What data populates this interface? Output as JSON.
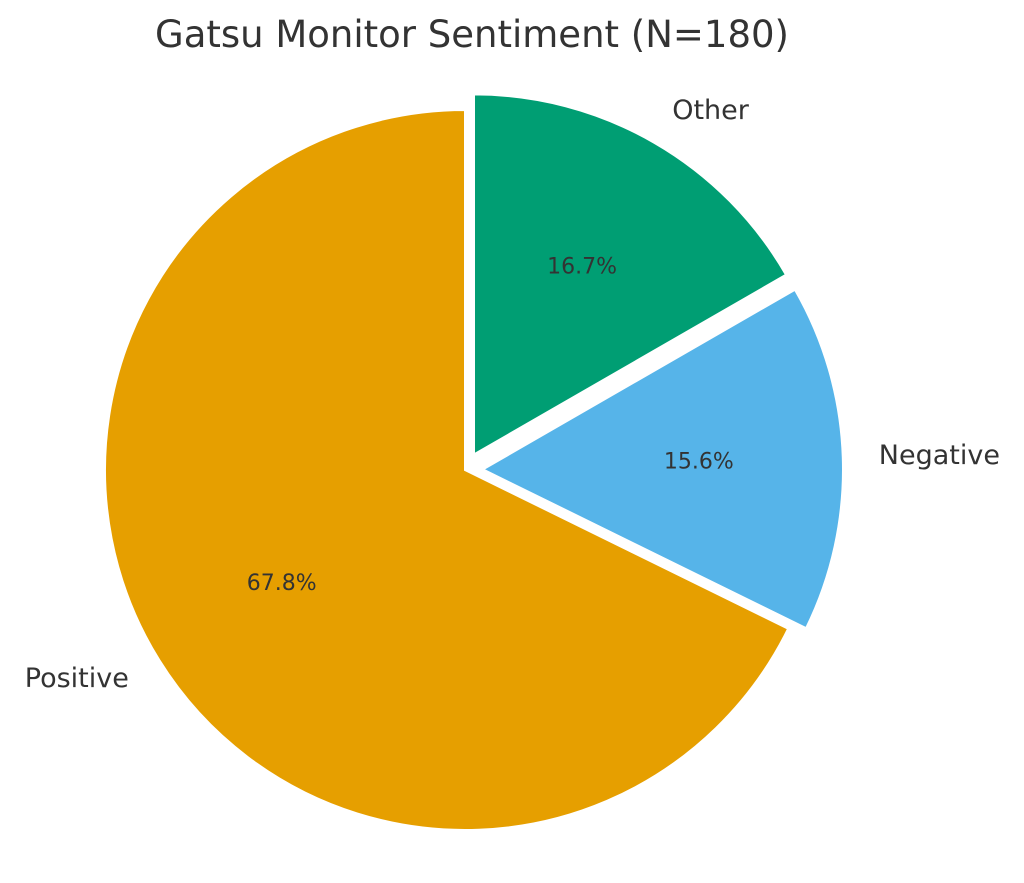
{
  "chart_data": {
    "type": "pie",
    "title": "Gatsu Monitor Sentiment (N=180)",
    "categories": [
      "Positive",
      "Negative",
      "Other"
    ],
    "values": [
      67.8,
      15.6,
      16.7
    ],
    "value_labels": [
      "67.8%",
      "15.6%",
      "16.7%"
    ],
    "colors": [
      "#E69F00",
      "#56B4E9",
      "#009E73"
    ],
    "exploded": [
      false,
      true,
      true
    ],
    "start_angle_deg": 90,
    "direction": "counterclockwise",
    "legend": "none"
  }
}
